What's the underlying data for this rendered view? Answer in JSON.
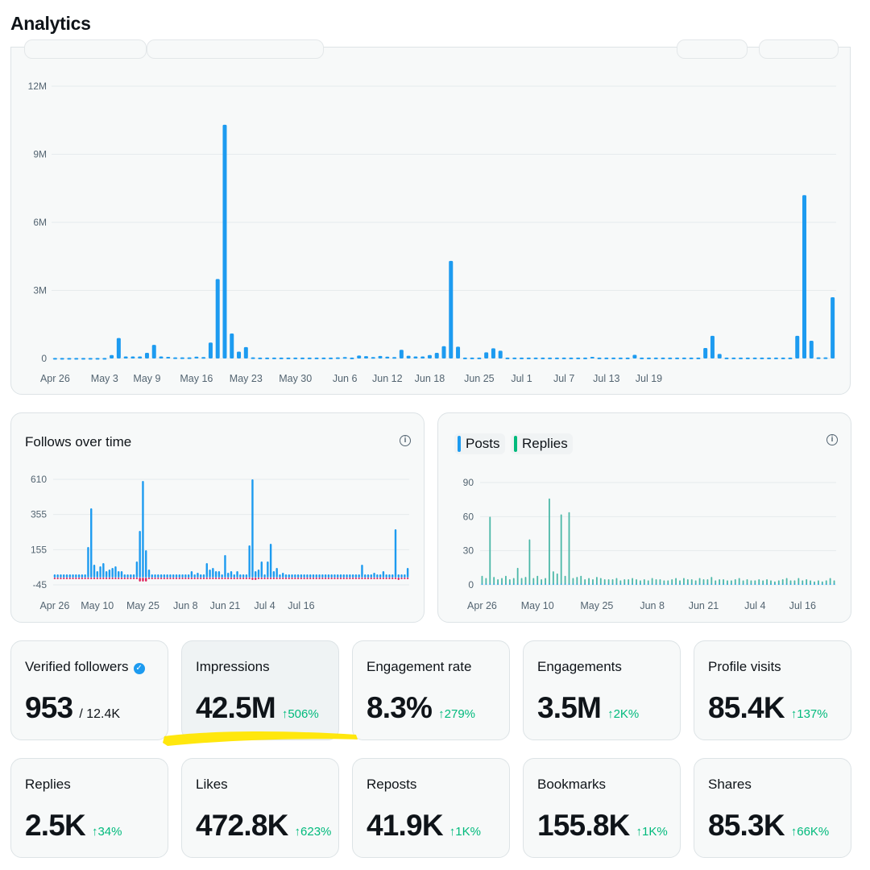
{
  "page_title": "Analytics",
  "colors": {
    "blue": "#1d9bf0",
    "green": "#00ba7c",
    "teal": "#4cb8a8",
    "red": "#e0245e",
    "highlight": "#ffe600"
  },
  "chart_data": [
    {
      "type": "bar",
      "title": "",
      "series_name": "Impressions",
      "y_ticks": [
        "12M",
        "9M",
        "6M",
        "3M",
        "0"
      ],
      "ylim": [
        0,
        12000000
      ],
      "x_ticks": [
        "Apr 26",
        "May 3",
        "May 9",
        "May 16",
        "May 23",
        "May 30",
        "Jun 6",
        "Jun 12",
        "Jun 18",
        "Jun 25",
        "Jul 1",
        "Jul 7",
        "Jul 13",
        "Jul 19"
      ],
      "x_tick_index": [
        0,
        7,
        13,
        20,
        27,
        34,
        41,
        47,
        53,
        60,
        66,
        72,
        78,
        84
      ],
      "values": [
        20000,
        20000,
        20000,
        20000,
        20000,
        20000,
        20000,
        20000,
        150000,
        900000,
        90000,
        90000,
        90000,
        250000,
        600000,
        90000,
        70000,
        50000,
        50000,
        50000,
        80000,
        60000,
        700000,
        3500000,
        10300000,
        1100000,
        300000,
        500000,
        50000,
        40000,
        40000,
        40000,
        40000,
        40000,
        40000,
        40000,
        40000,
        40000,
        40000,
        40000,
        50000,
        60000,
        40000,
        130000,
        100000,
        60000,
        110000,
        80000,
        60000,
        380000,
        120000,
        90000,
        90000,
        150000,
        250000,
        540000,
        4300000,
        520000,
        40000,
        40000,
        40000,
        270000,
        450000,
        340000,
        40000,
        40000,
        40000,
        40000,
        40000,
        40000,
        40000,
        40000,
        40000,
        40000,
        40000,
        40000,
        70000,
        40000,
        40000,
        40000,
        40000,
        40000,
        160000,
        40000,
        40000,
        40000,
        40000,
        40000,
        40000,
        40000,
        40000,
        40000,
        460000,
        1000000,
        200000,
        40000,
        40000,
        40000,
        40000,
        40000,
        40000,
        40000,
        40000,
        40000,
        40000,
        1000000,
        7200000,
        780000,
        50000,
        50000,
        2700000
      ]
    },
    {
      "type": "bar",
      "title": "Follows over time",
      "y_ticks": [
        "610",
        "355",
        "155",
        "-45"
      ],
      "ylim": [
        -45,
        610
      ],
      "x_ticks": [
        "Apr 26",
        "May 10",
        "May 25",
        "Jun 8",
        "Jun 21",
        "Jul 4",
        "Jul 16"
      ],
      "x_tick_index": [
        0,
        14,
        29,
        43,
        56,
        69,
        81
      ],
      "series": [
        {
          "name": "Follows",
          "values": [
            20,
            20,
            20,
            20,
            20,
            20,
            20,
            20,
            20,
            20,
            20,
            190,
            430,
            80,
            40,
            70,
            90,
            40,
            50,
            60,
            70,
            40,
            40,
            20,
            20,
            20,
            20,
            100,
            290,
            600,
            170,
            50,
            20,
            20,
            20,
            20,
            20,
            20,
            20,
            20,
            20,
            20,
            20,
            20,
            20,
            40,
            20,
            30,
            20,
            20,
            90,
            50,
            60,
            40,
            40,
            20,
            140,
            30,
            40,
            20,
            40,
            20,
            20,
            20,
            200,
            610,
            40,
            50,
            100,
            20,
            100,
            210,
            40,
            60,
            20,
            30,
            20,
            20,
            20,
            20,
            20,
            20,
            20,
            20,
            20,
            20,
            20,
            20,
            20,
            20,
            20,
            20,
            20,
            20,
            20,
            20,
            20,
            20,
            20,
            20,
            20,
            80,
            20,
            20,
            20,
            30,
            20,
            20,
            40,
            20,
            20,
            20,
            300,
            20,
            20,
            20,
            60
          ]
        },
        {
          "name": "Unfollows",
          "values": [
            -10,
            -10,
            -10,
            -10,
            -10,
            -10,
            -10,
            -10,
            -10,
            -10,
            -10,
            -10,
            -10,
            -10,
            -10,
            -10,
            -10,
            -10,
            -10,
            -10,
            -10,
            -10,
            -10,
            -10,
            -10,
            -10,
            -10,
            -10,
            -25,
            -25,
            -25,
            -10,
            -10,
            -10,
            -10,
            -10,
            -10,
            -10,
            -10,
            -10,
            -10,
            -10,
            -10,
            -10,
            -10,
            -10,
            -10,
            -10,
            -10,
            -10,
            -10,
            -10,
            -10,
            -10,
            -10,
            -10,
            -10,
            -10,
            -10,
            -10,
            -10,
            -10,
            -10,
            -10,
            -10,
            -15,
            -15,
            -10,
            -10,
            -10,
            -10,
            -10,
            -10,
            -10,
            -10,
            -10,
            -10,
            -10,
            -10,
            -10,
            -10,
            -10,
            -10,
            -10,
            -10,
            -10,
            -10,
            -10,
            -10,
            -10,
            -10,
            -10,
            -10,
            -10,
            -10,
            -10,
            -10,
            -10,
            -10,
            -10,
            -10,
            -10,
            -10,
            -10,
            -10,
            -10,
            -10,
            -10,
            -10,
            -10,
            -10,
            -10,
            -10,
            -15,
            -10,
            -10,
            -10
          ]
        }
      ]
    },
    {
      "type": "bar",
      "title": "",
      "y_ticks": [
        "90",
        "60",
        "30",
        "0"
      ],
      "ylim": [
        0,
        90
      ],
      "x_ticks": [
        "Apr 26",
        "May 10",
        "May 25",
        "Jun 8",
        "Jun 21",
        "Jul 4",
        "Jul 16"
      ],
      "x_tick_index": [
        0,
        14,
        29,
        43,
        56,
        69,
        81
      ],
      "legend": [
        "Posts",
        "Replies"
      ],
      "series": [
        {
          "name": "Posts",
          "values": [
            1,
            1,
            1,
            1,
            1,
            1,
            1,
            1,
            1,
            1,
            1,
            1,
            1,
            1,
            1,
            1,
            1,
            1,
            1,
            1,
            1,
            1,
            1,
            1,
            1,
            1,
            1,
            1,
            1,
            1,
            1,
            1,
            1,
            1,
            1,
            1,
            1,
            1,
            1,
            1,
            1,
            1,
            1,
            1,
            1,
            1,
            1,
            1,
            1,
            1,
            1,
            1,
            1,
            1,
            1,
            1,
            1,
            1,
            1,
            1,
            1,
            1,
            1,
            1,
            1,
            1,
            1,
            1,
            1,
            1,
            1,
            1,
            1,
            1,
            1,
            1,
            1,
            1,
            1,
            1,
            1,
            1,
            1,
            1,
            1,
            1,
            1,
            1,
            1,
            1
          ]
        },
        {
          "name": "Replies",
          "values": [
            8,
            6,
            60,
            7,
            5,
            6,
            8,
            5,
            6,
            15,
            6,
            7,
            40,
            6,
            8,
            5,
            6,
            76,
            12,
            10,
            62,
            8,
            64,
            6,
            7,
            8,
            5,
            6,
            5,
            7,
            6,
            5,
            5,
            5,
            6,
            4,
            5,
            5,
            6,
            5,
            4,
            5,
            4,
            6,
            5,
            5,
            4,
            4,
            5,
            6,
            4,
            6,
            5,
            5,
            4,
            6,
            5,
            5,
            7,
            4,
            5,
            5,
            4,
            4,
            5,
            6,
            4,
            5,
            4,
            4,
            5,
            4,
            5,
            4,
            3,
            4,
            5,
            6,
            4,
            4,
            6,
            4,
            5,
            4,
            3,
            4,
            3,
            4,
            6,
            4
          ]
        }
      ]
    }
  ],
  "metrics": [
    {
      "label": "Verified followers",
      "value": "953",
      "total": "/ 12.4K",
      "change": ""
    },
    {
      "label": "Impressions",
      "value": "42.5M",
      "change": "↑506%"
    },
    {
      "label": "Engagement rate",
      "value": "8.3%",
      "change": "↑279%"
    },
    {
      "label": "Engagements",
      "value": "3.5M",
      "change": "↑2K%"
    },
    {
      "label": "Profile visits",
      "value": "85.4K",
      "change": "↑137%"
    },
    {
      "label": "Replies",
      "value": "2.5K",
      "change": "↑34%"
    },
    {
      "label": "Likes",
      "value": "472.8K",
      "change": "↑623%"
    },
    {
      "label": "Reposts",
      "value": "41.9K",
      "change": "↑1K%"
    },
    {
      "label": "Bookmarks",
      "value": "155.8K",
      "change": "↑1K%"
    },
    {
      "label": "Shares",
      "value": "85.3K",
      "change": "↑66K%"
    }
  ]
}
